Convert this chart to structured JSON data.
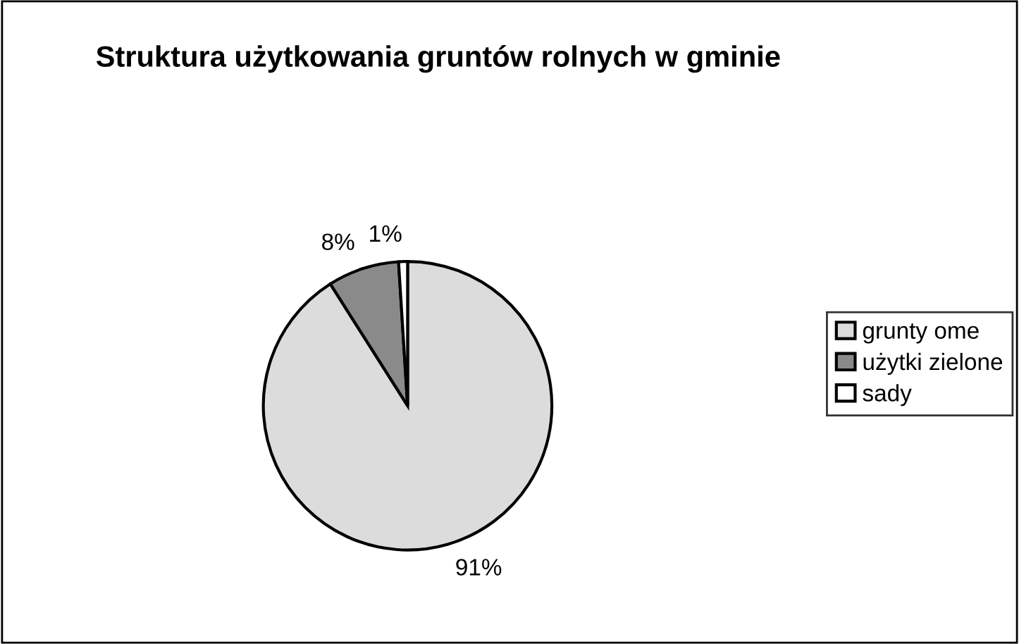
{
  "chart_data": {
    "type": "pie",
    "title": "Struktura użytkowania gruntów rolnych w gminie",
    "categories": [
      "grunty ome",
      "użytki zielone",
      "sady"
    ],
    "values": [
      91,
      8,
      1
    ],
    "value_labels": [
      "91%",
      "8%",
      "1%"
    ],
    "colors": [
      "#dcdcdc",
      "#8a8a8a",
      "#ffffff"
    ],
    "legend": "right"
  }
}
